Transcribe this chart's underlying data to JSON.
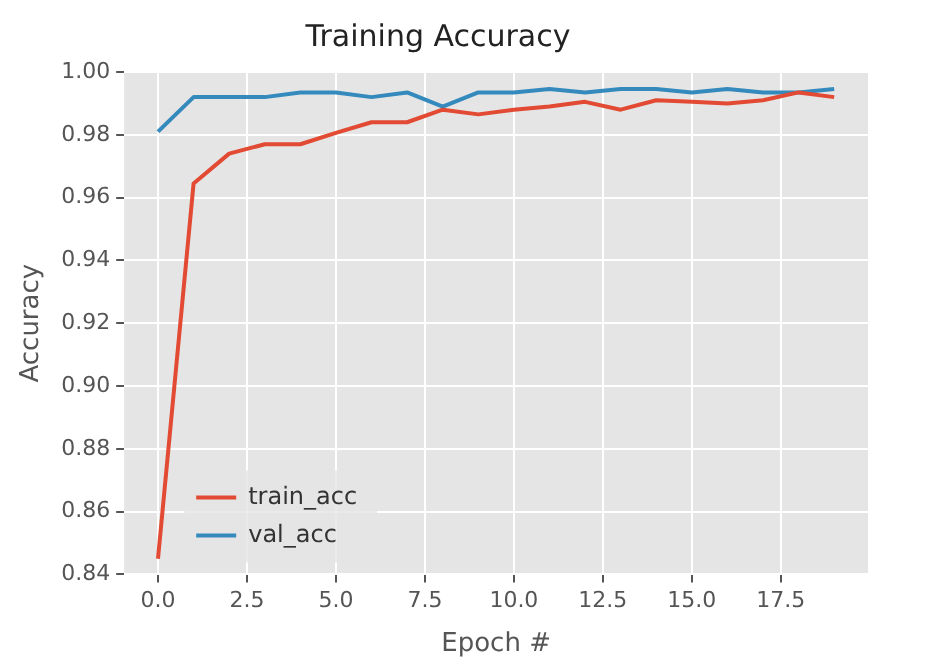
{
  "chart_data": {
    "type": "line",
    "title": "Training Accuracy",
    "xlabel": "Epoch #",
    "ylabel": "Accuracy",
    "x": [
      0,
      1,
      2,
      3,
      4,
      5,
      6,
      7,
      8,
      9,
      10,
      11,
      12,
      13,
      14,
      15,
      16,
      17,
      18,
      19
    ],
    "series": [
      {
        "name": "train_acc",
        "color": "#e24a33",
        "values": [
          0.845,
          0.9645,
          0.974,
          0.977,
          0.977,
          0.9806,
          0.984,
          0.984,
          0.988,
          0.9865,
          0.988,
          0.989,
          0.9905,
          0.988,
          0.991,
          0.9905,
          0.99,
          0.991,
          0.9935,
          0.992
        ]
      },
      {
        "name": "val_acc",
        "color": "#348abd",
        "values": [
          0.981,
          0.992,
          0.992,
          0.992,
          0.9935,
          0.9935,
          0.992,
          0.9935,
          0.989,
          0.9935,
          0.9935,
          0.9946,
          0.9935,
          0.9946,
          0.9946,
          0.9935,
          0.9946,
          0.9935,
          0.9935,
          0.9946
        ]
      }
    ],
    "xlim": [
      -0.95,
      19.95
    ],
    "xticks": [
      {
        "value": 0,
        "label": "0.0"
      },
      {
        "value": 2.5,
        "label": "2.5"
      },
      {
        "value": 5,
        "label": "5.0"
      },
      {
        "value": 7.5,
        "label": "7.5"
      },
      {
        "value": 10,
        "label": "10.0"
      },
      {
        "value": 12.5,
        "label": "12.5"
      },
      {
        "value": 15,
        "label": "15.0"
      },
      {
        "value": 17.5,
        "label": "17.5"
      }
    ],
    "ylim": [
      0.84,
      1.0
    ],
    "yticks": [
      {
        "value": 0.84,
        "label": "0.84"
      },
      {
        "value": 0.86,
        "label": "0.86"
      },
      {
        "value": 0.88,
        "label": "0.88"
      },
      {
        "value": 0.9,
        "label": "0.90"
      },
      {
        "value": 0.92,
        "label": "0.92"
      },
      {
        "value": 0.94,
        "label": "0.94"
      },
      {
        "value": 0.96,
        "label": "0.96"
      },
      {
        "value": 0.98,
        "label": "0.98"
      },
      {
        "value": 1.0,
        "label": "1.00"
      }
    ],
    "grid": true,
    "legend": "bottom left",
    "marker": "none",
    "line_style": "solid"
  }
}
